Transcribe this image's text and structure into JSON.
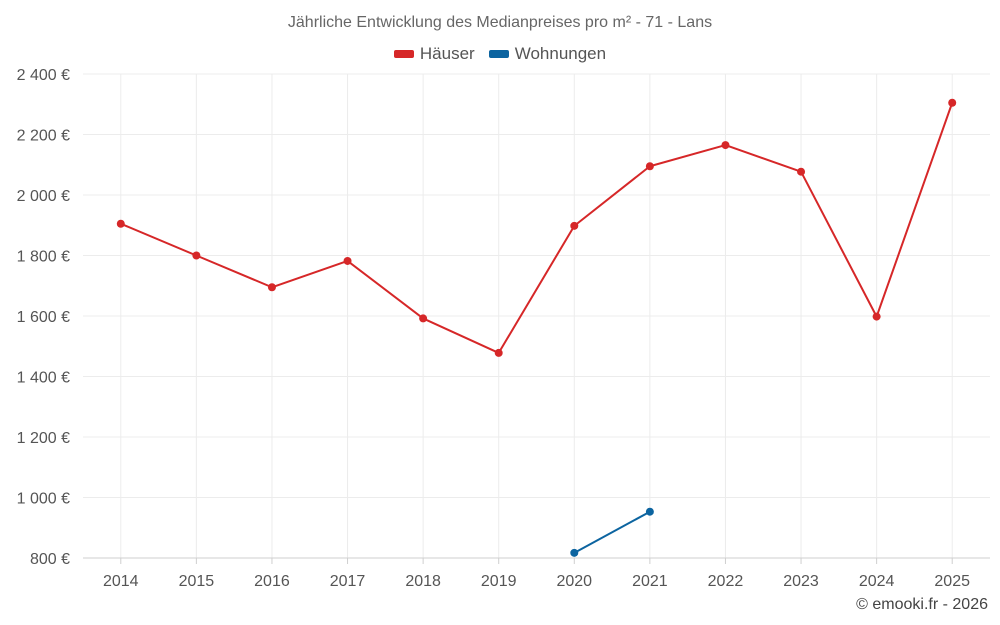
{
  "chart_data": {
    "type": "line",
    "title": "Jährliche Entwicklung des Medianpreises pro m² - 71 - Lans",
    "categories": [
      "2014",
      "2015",
      "2016",
      "2017",
      "2018",
      "2019",
      "2020",
      "2021",
      "2022",
      "2023",
      "2024",
      "2025"
    ],
    "y_ticks": [
      "800 €",
      "1 000 €",
      "1 200 €",
      "1 400 €",
      "1 600 €",
      "1 800 €",
      "2 000 €",
      "2 200 €",
      "2 400 €"
    ],
    "ylim": [
      800,
      2400
    ],
    "series": [
      {
        "name": "Häuser",
        "color": "#d62728",
        "values": [
          1905,
          1800,
          1695,
          1782,
          1592,
          1478,
          1898,
          2095,
          2165,
          2077,
          1598,
          2305
        ]
      },
      {
        "name": "Wohnungen",
        "color": "#0c64a0",
        "values": [
          null,
          null,
          null,
          null,
          null,
          null,
          817,
          953,
          null,
          null,
          null,
          null
        ]
      }
    ]
  },
  "credit": "© emooki.fr - 2026"
}
